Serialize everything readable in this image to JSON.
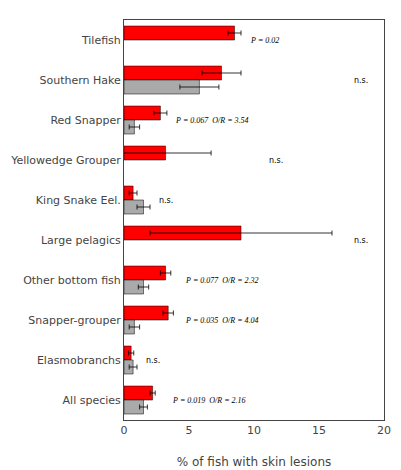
{
  "chart_data": {
    "type": "bar",
    "orientation": "horizontal",
    "categories": [
      "Tilefish",
      "Southern Hake",
      "Red Snapper",
      "Yellowedge Grouper",
      "King Snake Eel.",
      "Large pelagics",
      "Other bottom fish",
      "Snapper-grouper",
      "Elasmobranchs",
      "All species"
    ],
    "series": [
      {
        "color": "#FF0000",
        "values": [
          8.5,
          7.5,
          2.8,
          3.2,
          0.7,
          9.0,
          3.2,
          3.4,
          0.55,
          2.2
        ],
        "errors": [
          0.5,
          1.5,
          0.5,
          3.5,
          0.3,
          7.0,
          0.4,
          0.4,
          0.2,
          0.2
        ]
      },
      {
        "color": "#AAAAAA",
        "values": [
          0,
          5.8,
          0.8,
          0,
          1.5,
          0,
          1.5,
          0.8,
          0.7,
          1.5
        ],
        "errors": [
          0,
          1.5,
          0.4,
          0,
          0.5,
          0,
          0.4,
          0.4,
          0.3,
          0.3
        ]
      }
    ],
    "xlabel": "% of fish with skin lesions",
    "xlim": [
      0,
      20
    ],
    "xticks": [
      0,
      5,
      10,
      15,
      20
    ],
    "grid": false,
    "annotations": [
      {
        "text": "P = 0.02",
        "x": 9.5,
        "category": "Tilefish"
      },
      {
        "text": "n.s.",
        "x": 17.5,
        "category": "Southern Hake"
      },
      {
        "text": "P = 0.067  O/R = 3.54",
        "x": 3.8,
        "category": "Red Snapper"
      },
      {
        "text": "n.s.",
        "x": 11.0,
        "category": "Yellowedge Grouper"
      },
      {
        "text": "n.s.",
        "x": 2.5,
        "category": "King Snake Eel."
      },
      {
        "text": "n.s.",
        "x": 17.5,
        "category": "Large pelagics"
      },
      {
        "text": "P = 0.077  O/R = 2.32",
        "x": 4.5,
        "category": "Other bottom fish"
      },
      {
        "text": "P = 0.035  O/R = 4.04",
        "x": 4.5,
        "category": "Snapper-grouper"
      },
      {
        "text": "n.s.",
        "x": 1.5,
        "category": "Elasmobranchs"
      },
      {
        "text": "P = 0.019  O/R = 2.16",
        "x": 3.5,
        "category": "All species"
      }
    ]
  }
}
